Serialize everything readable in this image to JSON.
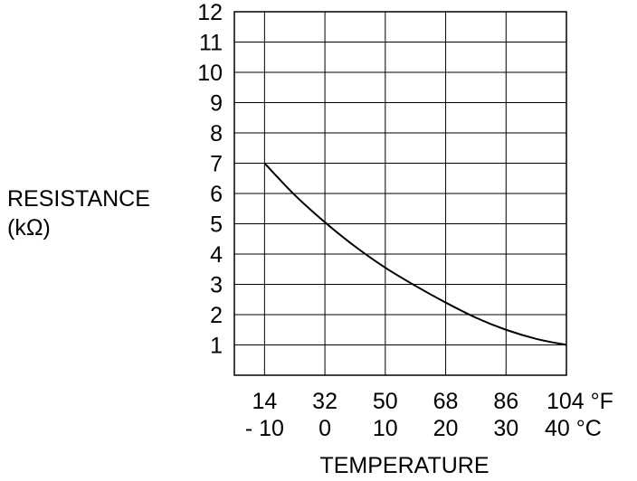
{
  "chart_data": {
    "type": "line",
    "xlabel": "TEMPERATURE",
    "ylabel_lines": [
      "RESISTANCE",
      "(kΩ)"
    ],
    "y_ticks": [
      "1",
      "2",
      "3",
      "4",
      "5",
      "6",
      "7",
      "8",
      "9",
      "10",
      "11",
      "12"
    ],
    "x_ticks_f": [
      "14",
      "32",
      "50",
      "68",
      "86",
      "104 °F"
    ],
    "x_ticks_c": [
      "- 10",
      "0",
      "10",
      "20",
      "30",
      "40 °C"
    ],
    "x_values_c": [
      -10,
      0,
      10,
      20,
      30,
      40
    ],
    "xlim_c": [
      -15,
      40
    ],
    "ylim": [
      0,
      12
    ],
    "grid": true,
    "series": [
      {
        "x": [
          -10,
          -5,
          0,
          5,
          10,
          15,
          20,
          25,
          30,
          35,
          40
        ],
        "y": [
          7.0,
          5.95,
          5.05,
          4.25,
          3.55,
          2.95,
          2.4,
          1.9,
          1.5,
          1.2,
          1.0
        ]
      }
    ],
    "line_color": "#000000",
    "grid_color": "#000000"
  }
}
